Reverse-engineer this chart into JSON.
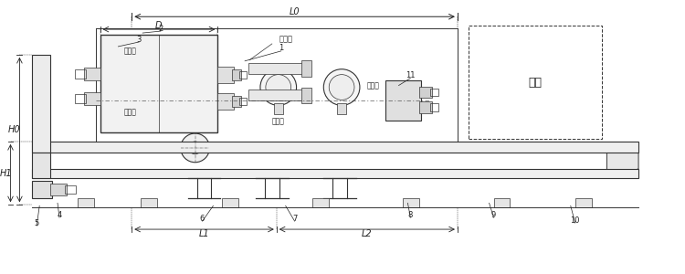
{
  "bg_color": "#ffffff",
  "line_color": "#333333",
  "text_color": "#222222",
  "labels": {
    "L0": "L0",
    "D": "D",
    "L1": "L1",
    "L2": "L2",
    "H0": "H0",
    "H1": "H1",
    "wugan1": "无杆腔",
    "yougan1": "有杆腔",
    "wugan2": "无杆腔",
    "yougan2": "有杆腔",
    "beng": "接泵站",
    "zhongwu": "重物"
  },
  "figsize": [
    7.5,
    3.0
  ],
  "dpi": 100
}
